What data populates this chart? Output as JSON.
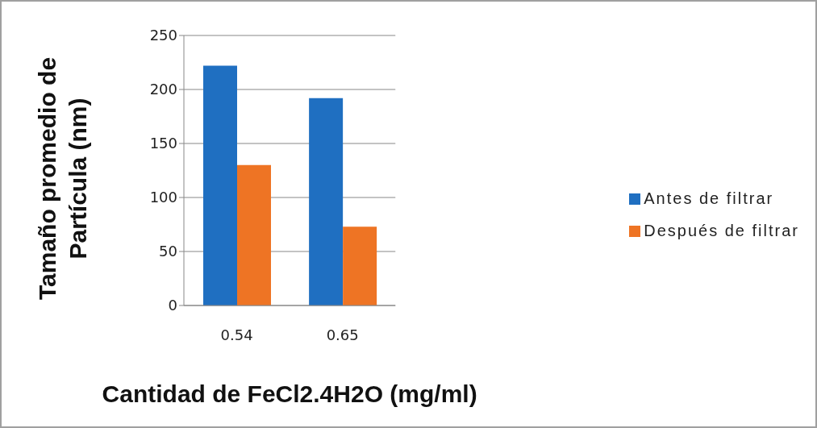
{
  "chart_data": {
    "type": "bar",
    "xlabel": "Cantidad de FeCl2.4H2O (mg/ml)",
    "ylabel": "Tamaño promedio de Partícula (nm)",
    "categories": [
      "0.54",
      "0.65"
    ],
    "series": [
      {
        "name": "Antes de filtrar",
        "color": "#1f6fc1",
        "values": [
          222,
          192
        ]
      },
      {
        "name": "Después de filtrar",
        "color": "#ee7424",
        "values": [
          130,
          73
        ]
      }
    ],
    "ylim": [
      0,
      250
    ],
    "yticks": [
      0,
      50,
      100,
      150,
      200,
      250
    ],
    "grid": "y",
    "legend": "right"
  }
}
